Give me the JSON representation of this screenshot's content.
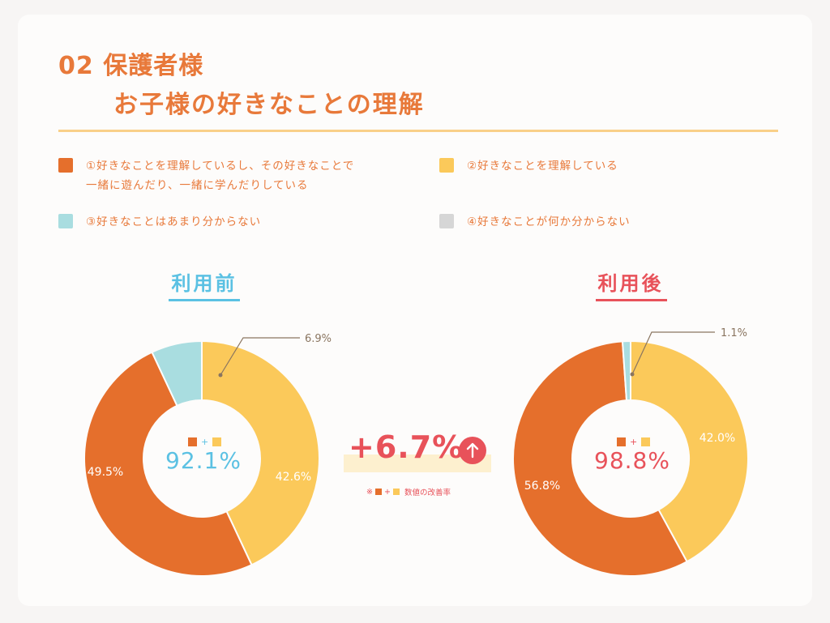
{
  "header": {
    "title_line1": "02 保護者様",
    "title_line2": "お子様の好きなことの理解"
  },
  "colors": {
    "accent": "#e8793a",
    "item1": "#e56f2c",
    "item2": "#fbc95a",
    "item3": "#a9dde0",
    "item4": "#d6d6d6",
    "before": "#5bc1e3",
    "after": "#e8525a"
  },
  "legend": [
    {
      "label": "①好きなことを理解しているし、その好きなことで",
      "label2": "一緒に遊んだり、一緒に学んだりしている"
    },
    {
      "label": "②好きなことを理解している"
    },
    {
      "label": "③好きなことはあまり分からない"
    },
    {
      "label": "④好きなことが何か分からない"
    }
  ],
  "improvement": {
    "value": "+6.7%",
    "icon": "up-arrow-icon",
    "note_prefix": "※",
    "note_plus": "+",
    "note_text": "数値の改善率"
  },
  "chart_data": [
    {
      "type": "pie",
      "title": "利用前",
      "categories": [
        "①",
        "②",
        "③",
        "④"
      ],
      "values": [
        49.5,
        42.6,
        6.9,
        0
      ],
      "value_labels": [
        "49.5%",
        "42.6%",
        "6.9%",
        ""
      ],
      "center_plus": "+",
      "center_value": "92.1%"
    },
    {
      "type": "pie",
      "title": "利用後",
      "categories": [
        "①",
        "②",
        "③",
        "④"
      ],
      "values": [
        56.8,
        42.0,
        1.1,
        0
      ],
      "value_labels": [
        "56.8%",
        "42.0%",
        "1.1%",
        ""
      ],
      "center_plus": "+",
      "center_value": "98.8%"
    }
  ]
}
